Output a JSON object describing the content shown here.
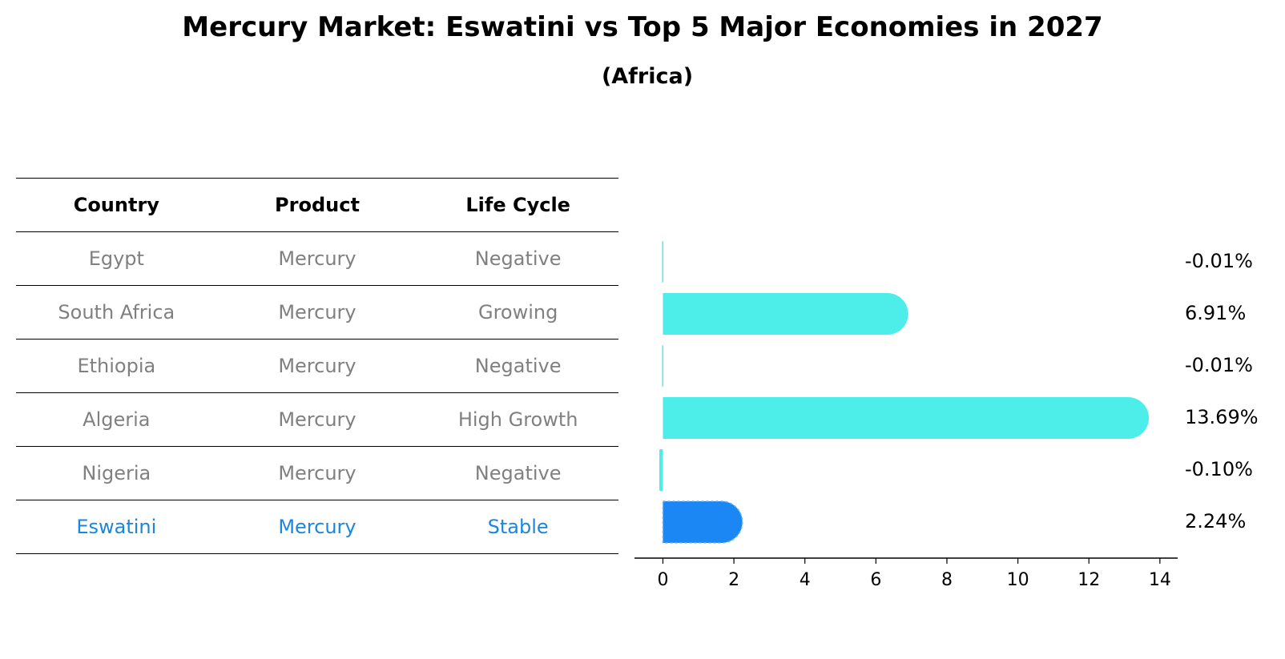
{
  "title": "Mercury Market: Eswatini vs Top 5 Major Economies in 2027",
  "subtitle": "(Africa)",
  "table": {
    "headers": [
      "Country",
      "Product",
      "Life Cycle"
    ],
    "rows": [
      {
        "country": "Egypt",
        "product": "Mercury",
        "life_cycle": "Negative",
        "highlight": false
      },
      {
        "country": "South Africa",
        "product": "Mercury",
        "life_cycle": "Growing",
        "highlight": false
      },
      {
        "country": "Ethiopia",
        "product": "Mercury",
        "life_cycle": "Negative",
        "highlight": false
      },
      {
        "country": "Algeria",
        "product": "Mercury",
        "life_cycle": "High Growth",
        "highlight": false
      },
      {
        "country": "Nigeria",
        "product": "Mercury",
        "life_cycle": "Negative",
        "highlight": false
      },
      {
        "country": "Eswatini",
        "product": "Mercury",
        "life_cycle": "Stable",
        "highlight": true
      }
    ]
  },
  "chart_data": {
    "type": "bar",
    "orientation": "horizontal",
    "categories": [
      "Egypt",
      "South Africa",
      "Ethiopia",
      "Algeria",
      "Nigeria",
      "Eswatini"
    ],
    "values": [
      -0.01,
      6.91,
      -0.01,
      13.69,
      -0.1,
      2.24
    ],
    "value_labels": [
      "-0.01%",
      "6.91%",
      "-0.01%",
      "13.69%",
      "-0.10%",
      "2.24%"
    ],
    "highlight_category": "Eswatini",
    "xlim": [
      -0.8,
      14.5
    ],
    "xticks": [
      0,
      2,
      4,
      6,
      8,
      10,
      12,
      14
    ],
    "xlabel": "",
    "ylabel": "",
    "grid": false,
    "colors": {
      "bar": "#4deeea",
      "highlight_bar": "#1a87f5",
      "highlight_text": "#1a87dc",
      "muted_text": "#808080"
    }
  }
}
